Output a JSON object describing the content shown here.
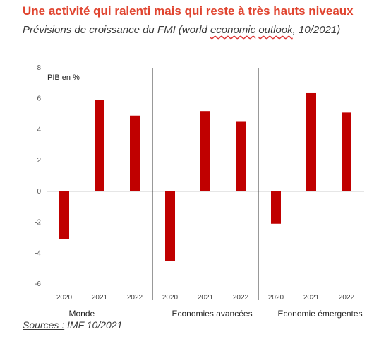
{
  "header": {
    "title": "Une activité qui ralenti mais qui reste à très hauts niveaux",
    "subtitle_before": "Prévisions de croissance du FMI (world ",
    "subtitle_wavy1": "economic",
    "subtitle_mid": " ",
    "subtitle_wavy2": "outlook",
    "subtitle_after": ", 10/2021)"
  },
  "source": {
    "label": "Sources :",
    "text": " IMF 10/2021"
  },
  "colors": {
    "title": "#e0442f",
    "bar": "#c00000"
  },
  "chart_data": {
    "type": "bar",
    "ylabel": "PIB en %",
    "ylim": [
      -6,
      8
    ],
    "yticks": [
      -6,
      -4,
      -2,
      0,
      2,
      4,
      6,
      8
    ],
    "grid": false,
    "groups": [
      {
        "name": "Monde",
        "categories": [
          "2020",
          "2021",
          "2022"
        ],
        "values": [
          -3.1,
          5.9,
          4.9
        ]
      },
      {
        "name": "Economies avancées",
        "categories": [
          "2020",
          "2021",
          "2022"
        ],
        "values": [
          -4.5,
          5.2,
          4.5
        ]
      },
      {
        "name": "Economie émergentes",
        "categories": [
          "2020",
          "2021",
          "2022"
        ],
        "values": [
          -2.1,
          6.4,
          5.1
        ]
      }
    ]
  }
}
